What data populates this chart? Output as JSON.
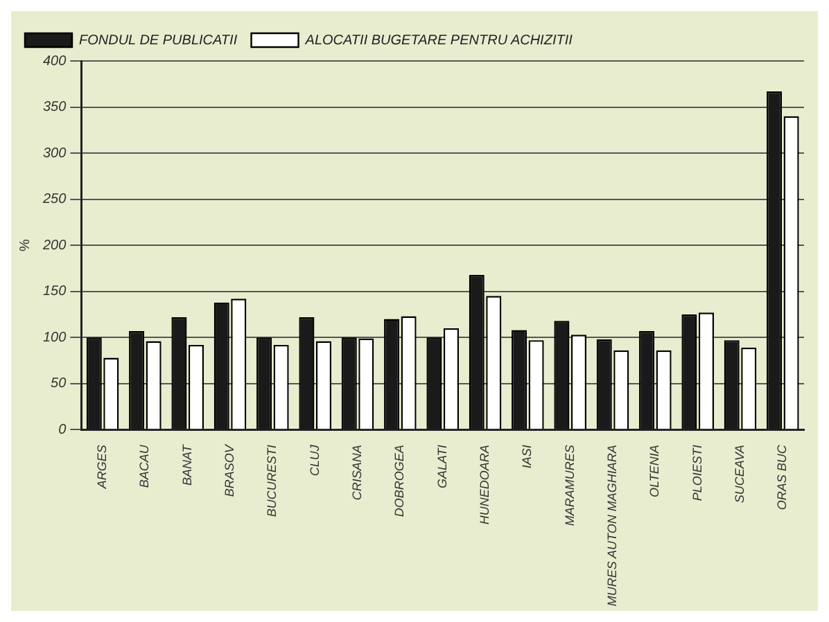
{
  "chart_data": {
    "type": "bar",
    "ylabel": "%",
    "categories": [
      "ARGES",
      "BACAU",
      "BANAT",
      "BRASOV",
      "BUCURESTI",
      "CLUJ",
      "CRISANA",
      "DOBROGEA",
      "GALATI",
      "HUNEDOARA",
      "IASI",
      "MARAMURES",
      "MURES AUTON MAGHIARA",
      "OLTENIA",
      "PLOIESTI",
      "SUCEAVA",
      "ORAS BUC"
    ],
    "series": [
      {
        "name": "FONDUL DE PUBLICATII",
        "color": "#1a1a1a",
        "values": [
          100,
          107,
          122,
          138,
          100,
          122,
          100,
          120,
          100,
          168,
          108,
          118,
          98,
          107,
          125,
          97,
          367
        ]
      },
      {
        "name": "ALOCATII BUGETARE PENTRU ACHIZITII",
        "color": "#ffffff",
        "values": [
          78,
          96,
          92,
          142,
          92,
          96,
          99,
          123,
          110,
          145,
          97,
          103,
          86,
          86,
          127,
          89,
          340
        ]
      }
    ],
    "ylim": [
      0,
      400
    ],
    "yticks": [
      0,
      50,
      100,
      150,
      200,
      250,
      300,
      350,
      400
    ],
    "grid": "y",
    "legend": "top left"
  }
}
